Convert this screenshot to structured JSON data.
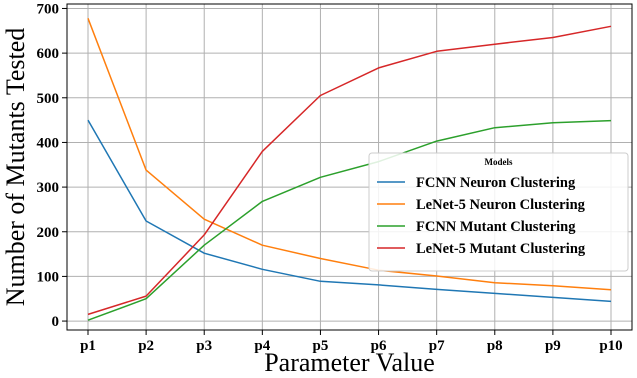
{
  "chart_data": {
    "type": "line",
    "xlabel": "Parameter Value",
    "ylabel": "Number of Mutants Tested",
    "categories": [
      "p1",
      "p2",
      "p3",
      "p4",
      "p5",
      "p6",
      "p7",
      "p8",
      "p9",
      "p10"
    ],
    "ylim": [
      -20,
      710
    ],
    "yticks": [
      0,
      100,
      200,
      300,
      400,
      500,
      600,
      700
    ],
    "grid": true,
    "legend": {
      "title": "Models",
      "placement": "center-right"
    },
    "series": [
      {
        "name": "FCNN Neuron Clustering",
        "color": "#1f77b4",
        "values": [
          450,
          224,
          152,
          116,
          89,
          81,
          71,
          62,
          53,
          44
        ]
      },
      {
        "name": "LeNet-5 Neuron Clustering",
        "color": "#ff7f0e",
        "values": [
          678,
          338,
          228,
          170,
          140,
          114,
          101,
          86,
          79,
          70
        ]
      },
      {
        "name": "FCNN Mutant Clustering",
        "color": "#2ca02c",
        "values": [
          2,
          50,
          170,
          268,
          322,
          357,
          403,
          433,
          444,
          449
        ]
      },
      {
        "name": "LeNet-5 Mutant Clustering",
        "color": "#d62728",
        "values": [
          15,
          56,
          193,
          380,
          505,
          567,
          604,
          620,
          635,
          660
        ]
      }
    ]
  }
}
